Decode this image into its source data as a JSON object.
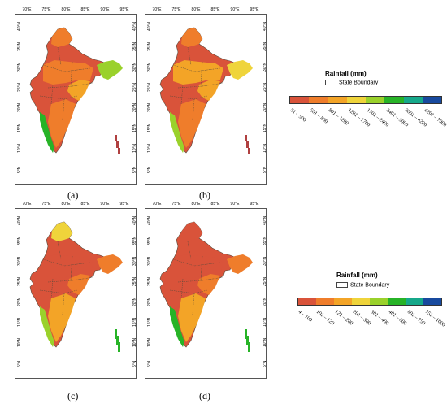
{
  "colors": {
    "scale_a": [
      "#d9533a",
      "#ef7d2b",
      "#f3a427",
      "#efd43b",
      "#9ad12b",
      "#27b327",
      "#16a88a",
      "#184a9e"
    ],
    "scale_b": [
      "#d9533a",
      "#ef7d2b",
      "#f3a427",
      "#efd43b",
      "#9ad12b",
      "#27b327",
      "#16a88a",
      "#184a9e"
    ],
    "state_line": "#5a4a3a",
    "island": "#b04040"
  },
  "top_legend": {
    "title": "Rainfall (mm)",
    "boundary_label": "State Boundary",
    "classes": [
      "51 – 500",
      "501 – 800",
      "801 – 1200",
      "1201 – 1700",
      "1701 – 2400",
      "2401 – 3000",
      "3001 – 4200",
      "4201 – 7000"
    ]
  },
  "bottom_legend": {
    "title": "Rainfall (mm)",
    "boundary_label": "State Boundary",
    "classes": [
      "4 – 100",
      "101 – 120",
      "121 – 200",
      "201 – 300",
      "301 – 400",
      "401 – 600",
      "601 – 750",
      "751 – 1000"
    ]
  },
  "axes": {
    "lon_ticks": [
      "70°E",
      "75°E",
      "80°E",
      "85°E",
      "90°E",
      "95°E"
    ],
    "lat_ticks": [
      "40°N",
      "35°N",
      "30°N",
      "25°N",
      "20°N",
      "15°N",
      "10°N",
      "5°N"
    ]
  },
  "panels": [
    {
      "id": "a",
      "label": "(a)"
    },
    {
      "id": "b",
      "label": "(b)"
    },
    {
      "id": "c",
      "label": "(c)"
    },
    {
      "id": "d",
      "label": "(d)"
    }
  ]
}
